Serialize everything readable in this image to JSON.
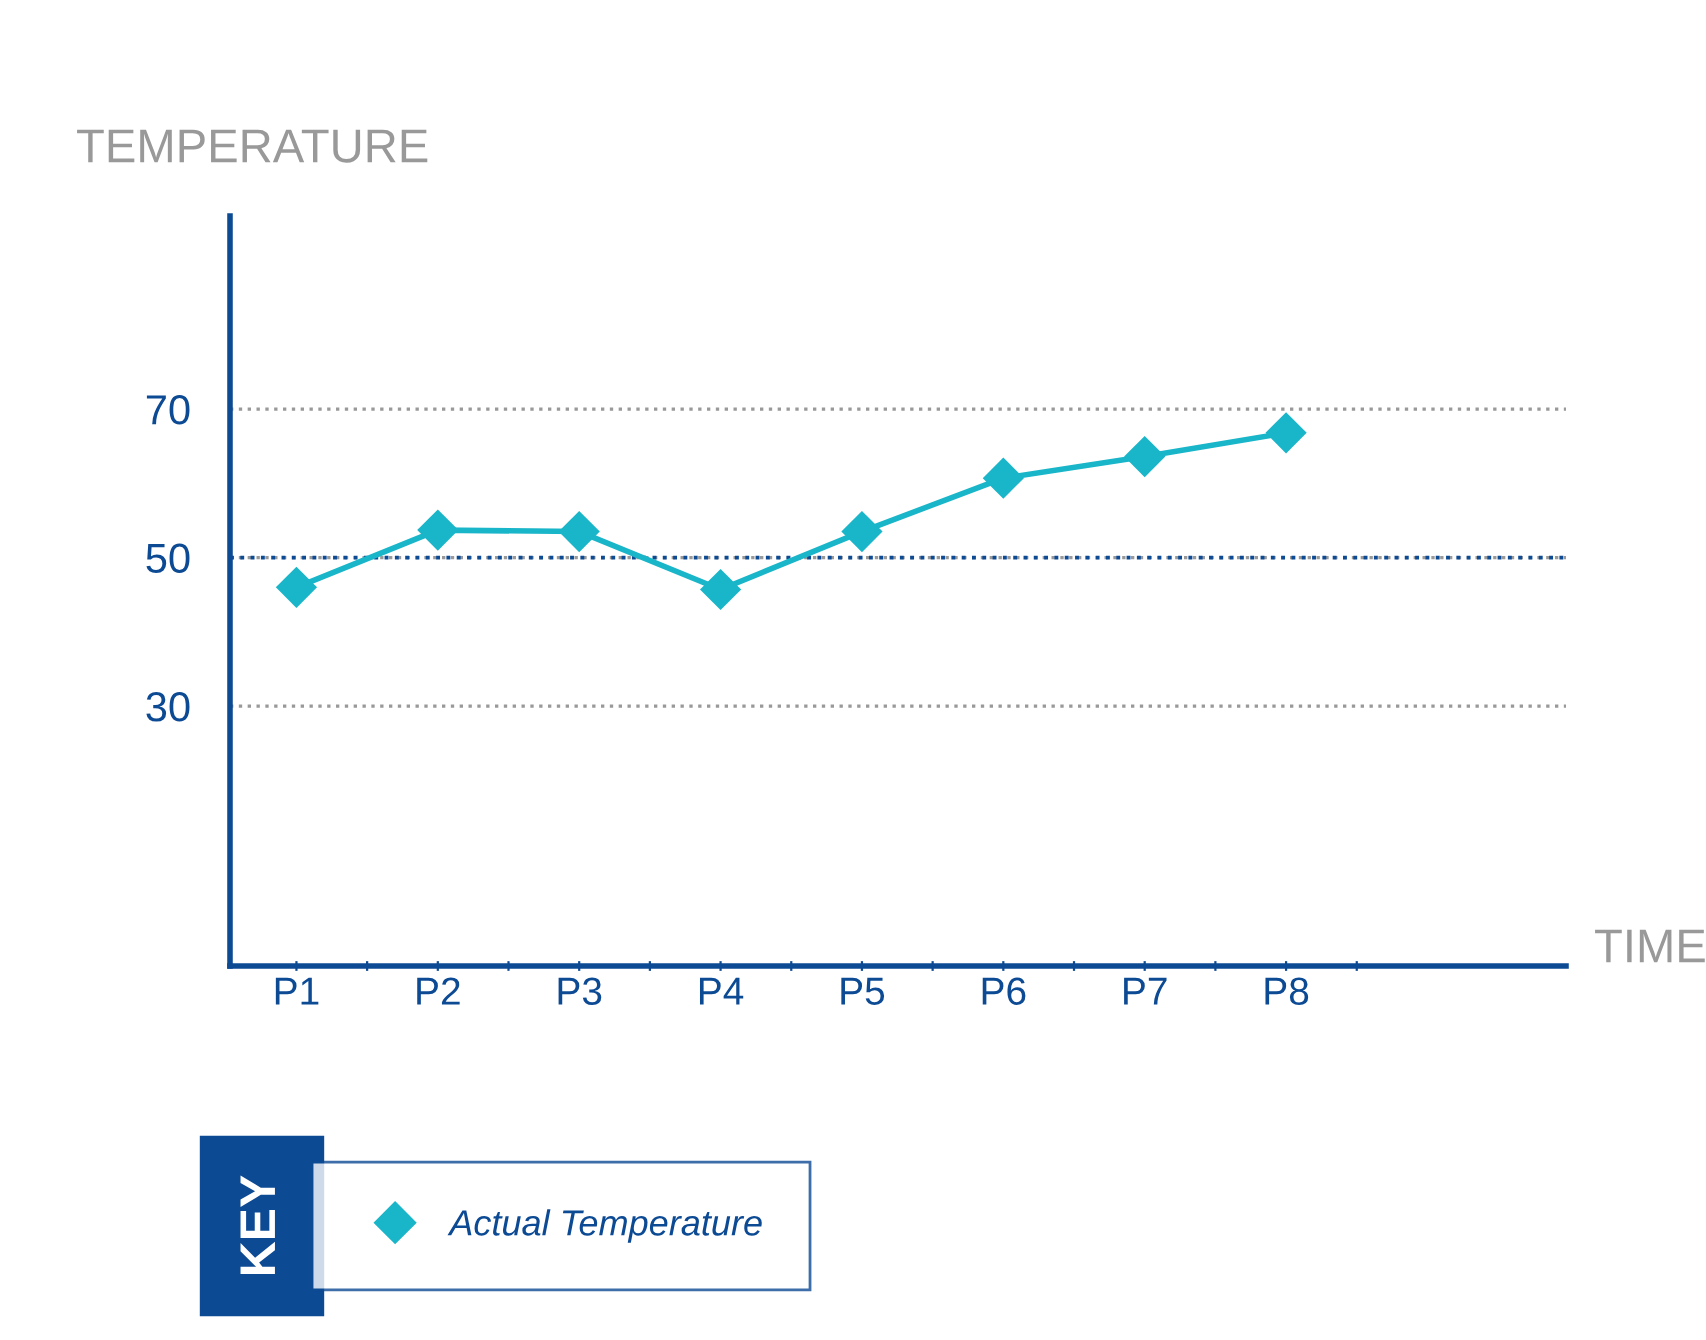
{
  "chart_data": {
    "type": "line",
    "ylabel": "TEMPERATURE",
    "annotations": [
      "TIME"
    ],
    "legend_title": "KEY",
    "categories": [
      "P1",
      "P2",
      "P3",
      "P4",
      "P5",
      "P6",
      "P7",
      "P8"
    ],
    "ylim": [
      -5,
      96
    ],
    "yticks": [
      30,
      50,
      70
    ],
    "grid": "y",
    "ref_lines": [
      {
        "axis": "y",
        "value": 50,
        "color": "#0d4a94",
        "line_style": "dotted"
      }
    ],
    "legend": "bottom left",
    "marker": "diamond",
    "series": [
      {
        "name": "Actual Temperature",
        "color": "#19b5c8",
        "values": [
          46,
          53.7,
          53.5,
          45.7,
          53.5,
          60.7,
          63.6,
          66.8
        ]
      }
    ]
  }
}
